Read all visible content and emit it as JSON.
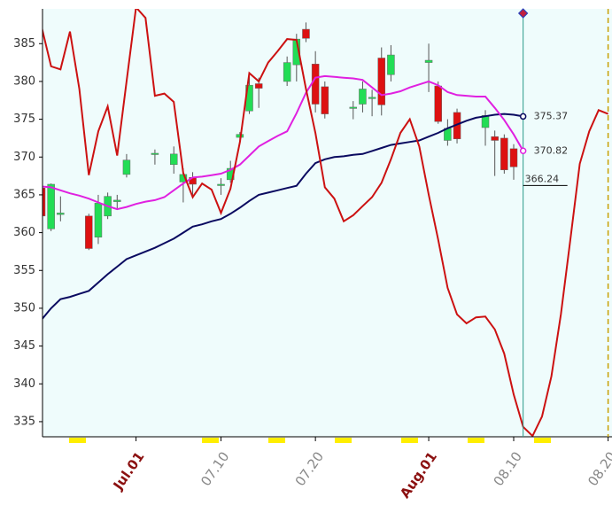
{
  "chart_data": {
    "type": "candlestick",
    "categories": [
      "",
      null,
      null,
      null,
      null,
      null,
      null,
      null,
      null,
      null,
      "Jul.01",
      null,
      null,
      null,
      null,
      null,
      null,
      null,
      null,
      "07.10",
      null,
      null,
      null,
      null,
      null,
      null,
      null,
      null,
      null,
      "07.20",
      null,
      null,
      null,
      null,
      null,
      null,
      null,
      null,
      null,
      null,
      null,
      "Aug.01",
      null,
      null,
      null,
      null,
      null,
      null,
      null,
      null,
      "08.10",
      null,
      null,
      null,
      null,
      null,
      null,
      null,
      null,
      null,
      "08.20"
    ],
    "open": [
      365.9,
      360.5,
      362.4,
      null,
      null,
      362.2,
      359.4,
      362.2,
      364.1,
      367.7,
      null,
      null,
      370.4,
      null,
      369.0,
      366.7,
      367.3,
      null,
      null,
      366.3,
      367.0,
      372.6,
      376.1,
      379.7,
      null,
      null,
      380.0,
      382.2,
      386.9,
      382.3,
      379.3,
      null,
      null,
      376.5,
      377.0,
      377.8,
      383.1,
      380.9,
      null,
      null,
      null,
      382.5,
      379.4,
      372.2,
      375.9,
      null,
      null,
      373.9,
      372.7,
      372.5,
      371.1,
      null,
      null,
      null,
      null,
      null,
      null,
      null,
      null,
      null,
      null
    ],
    "high": [
      366.2,
      366.5,
      364.8,
      null,
      null,
      362.5,
      365.0,
      365.3,
      365.0,
      370.4,
      null,
      null,
      371.0,
      null,
      371.4,
      368.5,
      368.0,
      null,
      null,
      367.2,
      369.5,
      373.3,
      380.7,
      380.5,
      null,
      null,
      383.3,
      386.3,
      387.8,
      384.0,
      380.0,
      null,
      null,
      377.4,
      380.0,
      378.9,
      384.5,
      384.8,
      null,
      null,
      null,
      385.0,
      380.0,
      375.0,
      376.4,
      null,
      null,
      376.2,
      373.5,
      373.0,
      371.7,
      null,
      null,
      null,
      null,
      null,
      null,
      null,
      null,
      null,
      null
    ],
    "low": [
      361.8,
      360.2,
      361.5,
      null,
      null,
      357.7,
      358.5,
      361.8,
      363.0,
      367.3,
      null,
      null,
      369.0,
      null,
      367.8,
      364.0,
      364.5,
      null,
      null,
      365.0,
      366.6,
      372.0,
      375.7,
      376.5,
      null,
      null,
      379.4,
      380.0,
      385.2,
      375.9,
      375.1,
      null,
      null,
      375.0,
      375.9,
      375.4,
      375.5,
      380.0,
      null,
      null,
      null,
      378.6,
      374.4,
      371.5,
      371.8,
      null,
      null,
      371.5,
      367.5,
      367.8,
      367.0,
      null,
      null,
      null,
      null,
      null,
      null,
      null,
      null,
      null,
      null
    ],
    "close": [
      362.2,
      366.4,
      362.6,
      null,
      null,
      357.9,
      363.9,
      364.8,
      364.3,
      369.6,
      null,
      null,
      370.5,
      null,
      370.4,
      367.7,
      366.4,
      null,
      null,
      366.4,
      368.5,
      373.0,
      379.5,
      379.1,
      null,
      null,
      382.5,
      385.6,
      385.7,
      377.0,
      375.7,
      null,
      null,
      376.6,
      379.0,
      377.9,
      376.9,
      383.5,
      null,
      null,
      null,
      382.8,
      374.7,
      373.8,
      372.4,
      null,
      null,
      375.5,
      372.2,
      368.3,
      368.7,
      null,
      null,
      null,
      null,
      null,
      null,
      null,
      null,
      null,
      null
    ],
    "up_color": "#22dd55",
    "down_color": "#dd1111",
    "lines": [
      {
        "color": "#0a0a60",
        "end_label": true,
        "values": [
          348.5,
          350.0,
          351.2,
          351.5,
          351.9,
          352.3,
          353.4,
          354.5,
          355.5,
          356.5,
          357.0,
          357.5,
          358.0,
          358.6,
          359.2,
          360.0,
          360.8,
          361.1,
          361.5,
          361.8,
          362.5,
          363.3,
          364.2,
          365.0,
          365.3,
          365.6,
          365.9,
          366.2,
          367.8,
          369.2,
          369.7,
          370.0,
          370.1,
          370.3,
          370.4,
          370.8,
          371.2,
          371.6,
          371.8,
          372.0,
          372.2,
          372.7,
          373.2,
          373.8,
          374.3,
          374.8,
          375.2,
          375.4,
          375.6,
          375.7,
          375.6,
          375.37,
          null,
          null,
          null,
          null,
          null,
          null,
          null,
          null,
          null
        ]
      },
      {
        "color": "#e020e0",
        "end_label": true,
        "values": [
          366.1,
          366.0,
          365.6,
          365.2,
          364.9,
          364.5,
          364.0,
          363.5,
          363.1,
          363.4,
          363.8,
          364.1,
          364.3,
          364.7,
          365.6,
          366.5,
          367.3,
          367.4,
          367.6,
          367.8,
          368.3,
          369.0,
          370.2,
          371.4,
          372.1,
          372.8,
          373.4,
          375.8,
          378.5,
          380.5,
          380.7,
          380.6,
          380.5,
          380.4,
          380.2,
          379.2,
          378.2,
          378.4,
          378.7,
          379.2,
          379.6,
          380.0,
          379.5,
          378.6,
          378.2,
          378.1,
          378.0,
          378.0,
          376.5,
          374.9,
          373.0,
          370.82,
          null,
          null,
          null,
          null,
          null,
          null,
          null,
          null,
          null
        ]
      },
      {
        "color": "#cc1111",
        "end_label": false,
        "values": [
          387.2,
          382.0,
          381.6,
          386.6,
          379.0,
          367.6,
          373.4,
          376.7,
          370.2,
          380.0,
          389.8,
          388.4,
          378.1,
          378.4,
          377.3,
          367.9,
          364.7,
          366.5,
          365.7,
          362.6,
          365.8,
          372.0,
          381.1,
          380.0,
          382.5,
          384.0,
          385.6,
          385.5,
          379.0,
          373.2,
          366.0,
          364.5,
          361.5,
          362.3,
          363.5,
          364.7,
          366.6,
          369.7,
          373.2,
          375.0,
          371.4,
          365.0,
          359.1,
          352.7,
          349.2,
          348.0,
          348.8,
          348.9,
          347.2,
          344.0,
          338.6,
          334.3,
          333.1,
          335.7,
          341.0,
          349.2,
          359.1,
          369.1,
          373.4,
          376.2,
          375.7
        ]
      }
    ],
    "price_marker": 366.24,
    "ylim": [
      333.0,
      389.6
    ],
    "yticks": [
      335,
      340,
      345,
      350,
      355,
      360,
      365,
      370,
      375,
      380,
      385
    ]
  }
}
